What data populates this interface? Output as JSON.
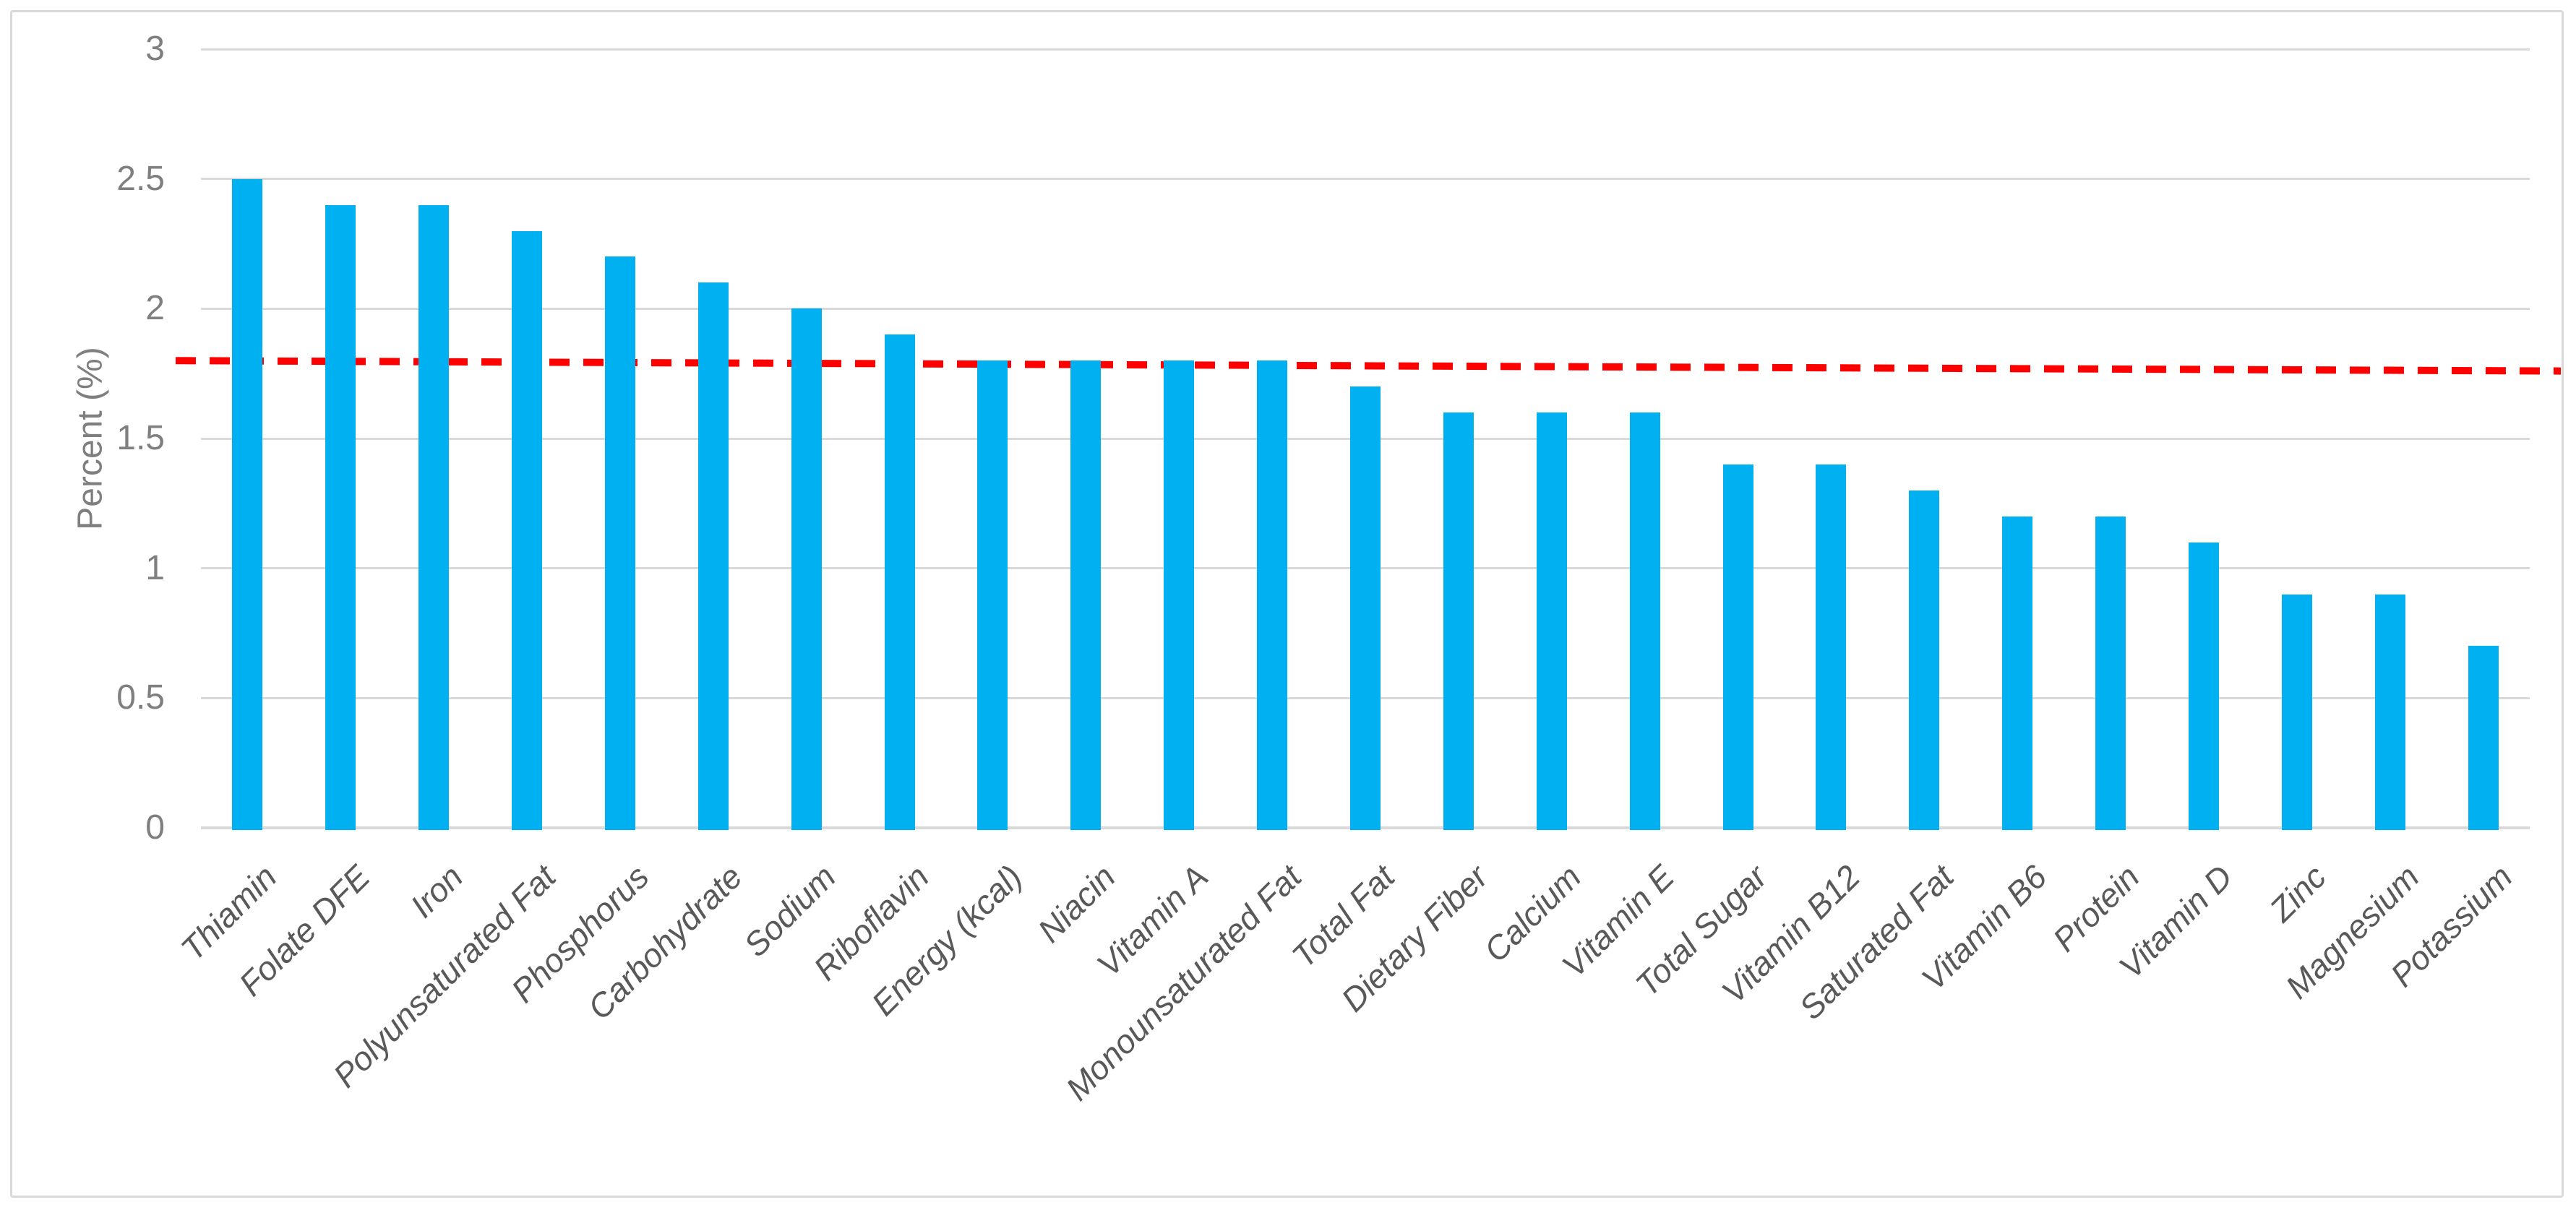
{
  "chart_data": {
    "type": "bar",
    "title": "",
    "xlabel": "",
    "ylabel": "Percent (%)",
    "ylim": [
      0,
      3
    ],
    "yticks": [
      0,
      0.5,
      1,
      1.5,
      2,
      2.5,
      3
    ],
    "ytick_labels": [
      "0",
      "0.5",
      "1",
      "1.5",
      "2",
      "2.5",
      "3"
    ],
    "grid": true,
    "legend": "none",
    "bar_color": "#00B0F0",
    "gridline_color": "#d9d9d9",
    "categories": [
      "Thiamin",
      "Folate DFE",
      "Iron",
      "Polyunsaturated Fat",
      "Phosphorus",
      "Carbohydrate",
      "Sodium",
      "Riboflavin",
      "Energy (kcal)",
      "Niacin",
      "Vitamin A",
      "Monounsaturated Fat",
      "Total Fat",
      "Dietary Fiber",
      "Calcium",
      "Vitamin E",
      "Total Sugar",
      "Vitamin B12",
      "Saturated Fat",
      "Vitamin B6",
      "Protein",
      "Vitamin D",
      "Zinc",
      "Magnesium",
      "Potassium"
    ],
    "values": [
      2.5,
      2.4,
      2.4,
      2.3,
      2.2,
      2.1,
      2.0,
      1.9,
      1.8,
      1.8,
      1.8,
      1.8,
      1.7,
      1.6,
      1.6,
      1.6,
      1.4,
      1.4,
      1.3,
      1.2,
      1.2,
      1.1,
      0.9,
      0.9,
      0.7
    ],
    "trendline": {
      "color": "#FF0000",
      "style": "dashed",
      "start_value": 1.8,
      "end_value": 1.76
    }
  }
}
